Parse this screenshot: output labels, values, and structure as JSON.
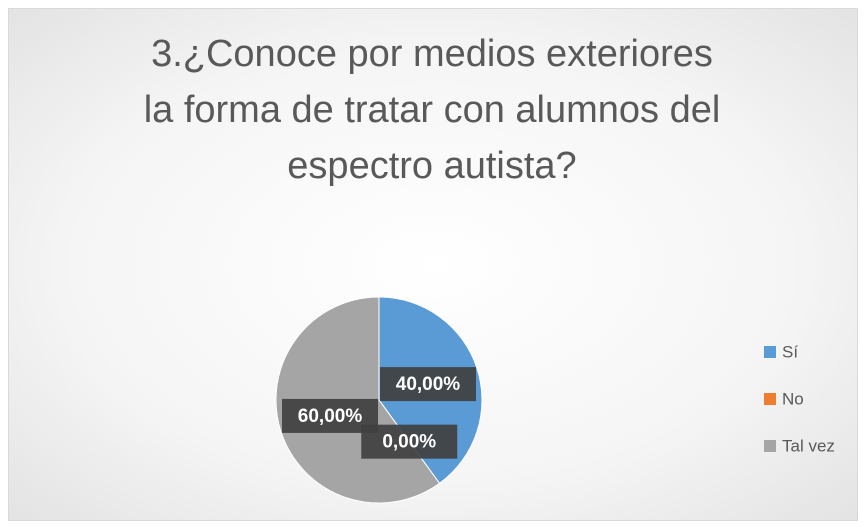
{
  "chart_data": {
    "type": "pie",
    "title": "3.¿Conoce por medios exteriores\nla forma de tratar con alumnos del\nespectro autista?",
    "categories": [
      "Sí",
      "No",
      "Tal vez"
    ],
    "values": [
      40,
      0,
      60
    ],
    "value_labels": [
      "40,00%",
      "0,00%",
      "60,00%"
    ],
    "colors": [
      "#5b9bd5",
      "#ed7d31",
      "#a5a5a5"
    ],
    "legend": "right"
  }
}
